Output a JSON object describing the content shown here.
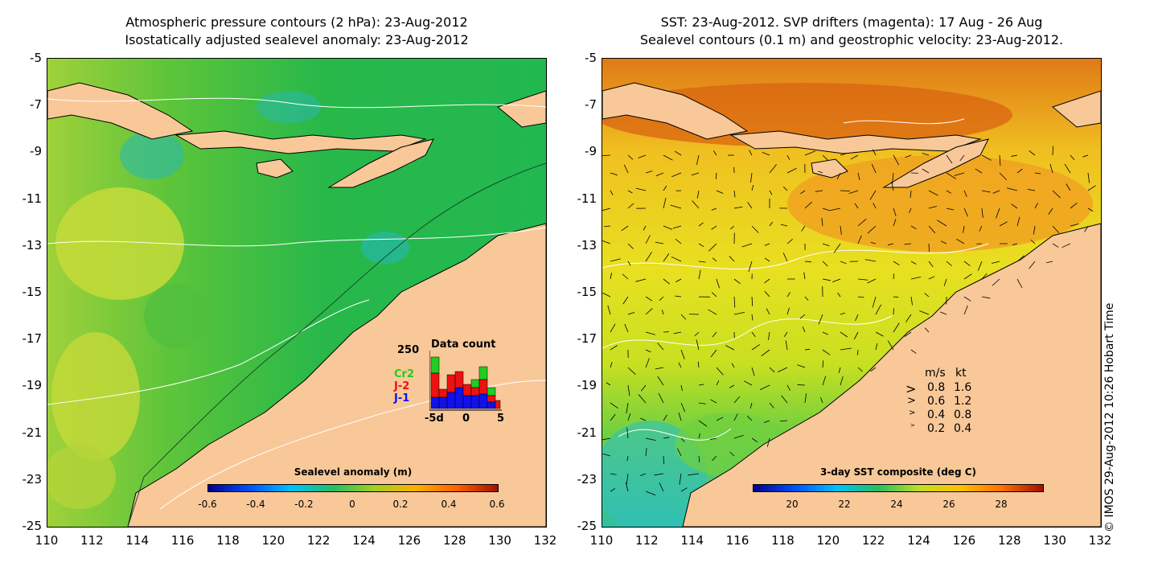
{
  "left_panel": {
    "title_line1": "Atmospheric pressure contours (2 hPa): 23-Aug-2012",
    "title_line2": "Isostatically adjusted sealevel anomaly: 23-Aug-2012",
    "colorbar": {
      "title": "Sealevel anomaly (m)",
      "ticks": [
        "-0.6",
        "-0.4",
        "-0.2",
        "0",
        "0.2",
        "0.4",
        "0.6"
      ]
    },
    "histogram": {
      "title": "Data count",
      "ymax_label": "250",
      "xticks": [
        "-5d",
        "0",
        "5"
      ],
      "series_labels": [
        "Cr2",
        "J-2",
        "J-1"
      ],
      "colors": {
        "Cr2": "#22cc22",
        "J-2": "#ee1111",
        "J-1": "#1111ee"
      }
    }
  },
  "right_panel": {
    "title_line1": "SST: 23-Aug-2012. SVP drifters (magenta): 17 Aug - 26 Aug",
    "title_line2": "Sealevel contours (0.1 m) and geostrophic velocity: 23-Aug-2012.",
    "colorbar": {
      "title": "3-day SST composite (deg C)",
      "ticks": [
        "20",
        "22",
        "24",
        "26",
        "28"
      ]
    },
    "velocity_legend": {
      "header_ms": "m/s",
      "header_kt": "kt",
      "rows": [
        {
          "ms": "0.8",
          "kt": "1.6"
        },
        {
          "ms": "0.6",
          "kt": "1.2"
        },
        {
          "ms": "0.4",
          "kt": "0.8"
        },
        {
          "ms": "0.2",
          "kt": "0.4"
        }
      ]
    }
  },
  "axes": {
    "y_ticks": [
      "-5",
      "-7",
      "-9",
      "-11",
      "-13",
      "-15",
      "-17",
      "-19",
      "-21",
      "-23",
      "-25"
    ],
    "x_ticks": [
      "110",
      "112",
      "114",
      "116",
      "118",
      "120",
      "122",
      "124",
      "126",
      "128",
      "130",
      "132"
    ]
  },
  "credit": "© IMOS 29-Aug-2012 10:26 Hobart Time",
  "colors": {
    "land": "#f9c898",
    "sla_water": "#22bb44",
    "sst_warm": "#e89020"
  }
}
